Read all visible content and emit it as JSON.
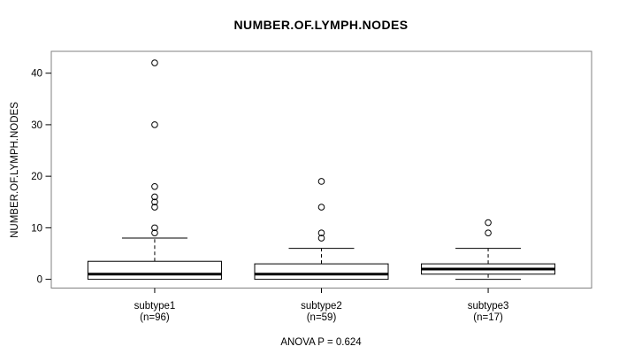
{
  "chart_data": {
    "type": "boxplot",
    "title": "NUMBER.OF.LYMPH.NODES",
    "ylabel": "NUMBER.OF.LYMPH.NODES",
    "annotation": "ANOVA P = 0.624",
    "ylim": [
      -1.7,
      44.24
    ],
    "y_ticks": [
      0,
      10,
      20,
      30,
      40
    ],
    "grid": false,
    "groups": [
      {
        "label": "subtype1",
        "n_label": "(n=96)",
        "n": 96,
        "whisker_low": 0,
        "q1": 0,
        "median": 1,
        "q3": 3.5,
        "whisker_high": 8,
        "outliers": [
          9,
          10,
          14,
          15,
          16,
          18,
          30,
          42
        ]
      },
      {
        "label": "subtype2",
        "n_label": "(n=59)",
        "n": 59,
        "whisker_low": 0,
        "q1": 0,
        "median": 1,
        "q3": 3,
        "whisker_high": 6,
        "outliers": [
          8,
          9,
          14,
          19
        ]
      },
      {
        "label": "subtype3",
        "n_label": "(n=17)",
        "n": 17,
        "whisker_low": 0,
        "q1": 1,
        "median": 2,
        "q3": 3,
        "whisker_high": 6,
        "outliers": [
          9,
          11
        ]
      }
    ],
    "colors": {
      "line": "#000000",
      "frame": "#808080",
      "background": "#ffffff",
      "box_fill": "#ffffff"
    }
  }
}
